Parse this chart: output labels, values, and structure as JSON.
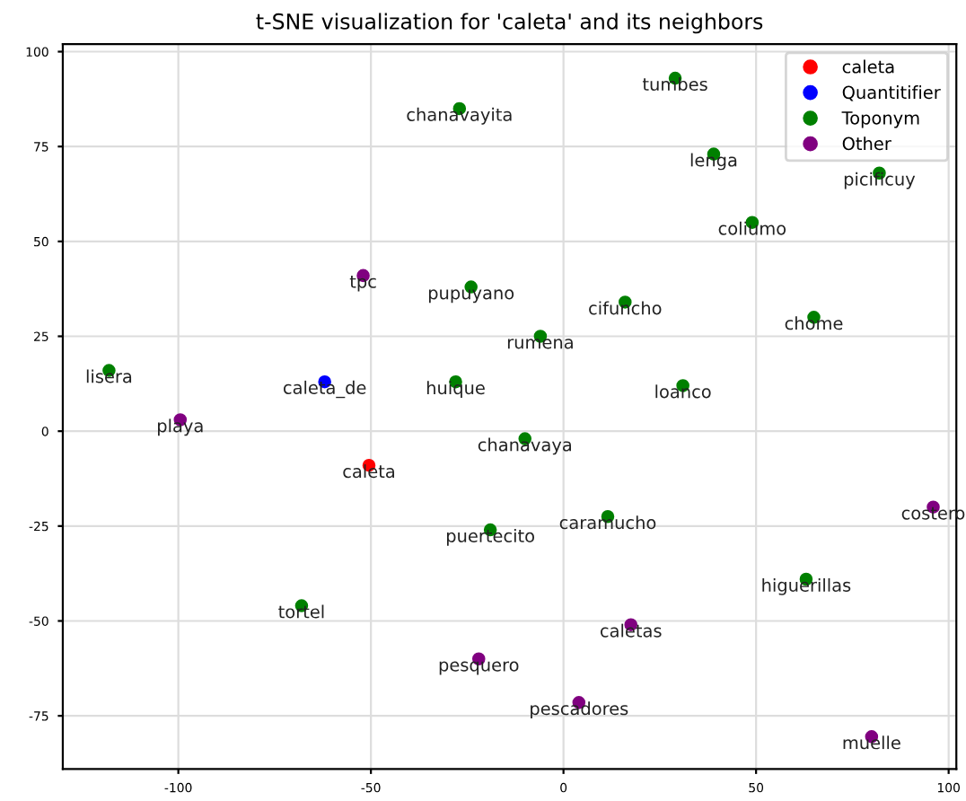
{
  "chart_data": {
    "type": "scatter",
    "title": "t-SNE visualization for 'caleta' and its neighbors",
    "xlim": [
      -130,
      102
    ],
    "ylim": [
      -89,
      102
    ],
    "xticks": [
      -100,
      -50,
      0,
      50,
      100
    ],
    "yticks": [
      -75,
      -50,
      -25,
      0,
      25,
      50,
      75,
      100
    ],
    "grid": true,
    "legend": "top right",
    "marker": "circle",
    "series": [
      {
        "name": "caleta",
        "color": "#ff0000",
        "x": [
          -50.5
        ],
        "values": [
          -9
        ]
      },
      {
        "name": "Quantitifier",
        "color": "#0000ff",
        "x": [
          -62
        ],
        "values": [
          13
        ]
      },
      {
        "name": "Toponym",
        "color": "#008000",
        "x": [
          -27,
          -24,
          -118,
          -28,
          -68,
          29,
          39,
          82,
          49,
          16,
          65,
          -6,
          31,
          -10,
          11.5,
          -19,
          63
        ],
        "values": [
          85,
          38,
          16,
          13,
          -46,
          93,
          73,
          68,
          55,
          34,
          30,
          25,
          12,
          -2,
          -22.5,
          -26,
          -39
        ]
      },
      {
        "name": "Other",
        "color": "#800080",
        "x": [
          -52,
          -99.5,
          -22,
          96,
          17.5,
          4,
          80
        ],
        "values": [
          41,
          3,
          -60,
          -20,
          -51,
          -71.5,
          -80.5
        ]
      }
    ],
    "annotations": [
      {
        "text": "caleta",
        "x": -50.5,
        "y": -9
      },
      {
        "text": "caleta_de",
        "x": -62,
        "y": 13
      },
      {
        "text": "chanavayita",
        "x": -27,
        "y": 85
      },
      {
        "text": "pupuyano",
        "x": -24,
        "y": 38
      },
      {
        "text": "lisera",
        "x": -118,
        "y": 16
      },
      {
        "text": "huique",
        "x": -28,
        "y": 13
      },
      {
        "text": "tortel",
        "x": -68,
        "y": -46
      },
      {
        "text": "tumbes",
        "x": 29,
        "y": 93
      },
      {
        "text": "lenga",
        "x": 39,
        "y": 73
      },
      {
        "text": "picificuy",
        "x": 82,
        "y": 68
      },
      {
        "text": "coliumo",
        "x": 49,
        "y": 55
      },
      {
        "text": "cifuncho",
        "x": 16,
        "y": 34
      },
      {
        "text": "chome",
        "x": 65,
        "y": 30
      },
      {
        "text": "rumena",
        "x": -6,
        "y": 25
      },
      {
        "text": "loanco",
        "x": 31,
        "y": 12
      },
      {
        "text": "chanavaya",
        "x": -10,
        "y": -2
      },
      {
        "text": "caramucho",
        "x": 11.5,
        "y": -22.5
      },
      {
        "text": "puertecito",
        "x": -19,
        "y": -26
      },
      {
        "text": "higuerillas",
        "x": 63,
        "y": -39
      },
      {
        "text": "tpc",
        "x": -52,
        "y": 41
      },
      {
        "text": "playa",
        "x": -99.5,
        "y": 3
      },
      {
        "text": "pesquero",
        "x": -22,
        "y": -60
      },
      {
        "text": "costero",
        "x": 96,
        "y": -20
      },
      {
        "text": "caletas",
        "x": 17.5,
        "y": -51
      },
      {
        "text": "pescadores",
        "x": 4,
        "y": -71.5
      },
      {
        "text": "muelle",
        "x": 80,
        "y": -80.5
      }
    ]
  }
}
